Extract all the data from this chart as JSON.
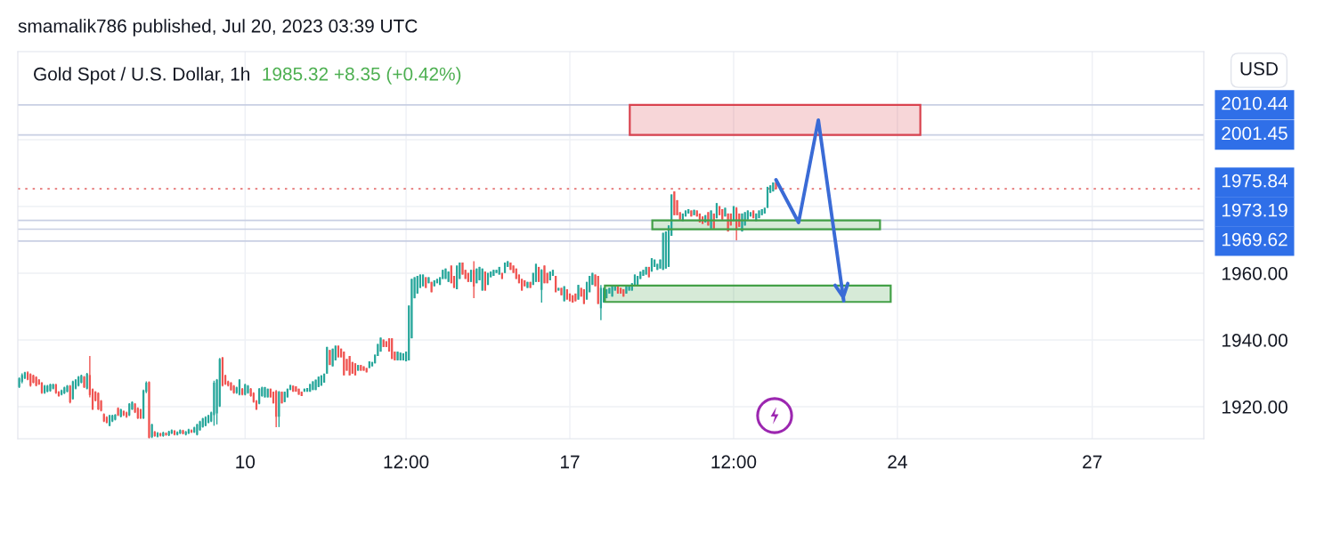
{
  "chart_data": {
    "type": "candlestick",
    "title": "Gold Spot / U.S. Dollar, 1h",
    "subtitle": "1985.32 +8.35 (+0.42%)",
    "ylabel": "USD",
    "annotations": [
      "smamalik786 published, Jul 20, 2023 03:39 UTC"
    ],
    "categories": [
      null,
      null,
      null,
      null,
      null,
      null,
      null,
      null,
      null,
      null,
      null,
      null,
      null,
      null,
      null,
      null,
      null,
      null,
      null,
      null,
      null,
      null,
      null,
      null,
      null,
      null,
      null,
      null,
      null,
      null,
      null,
      null,
      null,
      null,
      null,
      null,
      null,
      null,
      null,
      null,
      null,
      null,
      null,
      null,
      null,
      null,
      null,
      null,
      null,
      null,
      null,
      null,
      null,
      null,
      null,
      null,
      null,
      null,
      null,
      null,
      null,
      null,
      null,
      null,
      null,
      null,
      null,
      null,
      null,
      null,
      null,
      null,
      null,
      null,
      null,
      null,
      null,
      null,
      null,
      null,
      "10",
      null,
      null,
      null,
      null,
      null,
      null,
      null,
      null,
      null,
      null,
      null,
      null,
      null,
      null,
      null,
      null,
      null,
      null,
      null,
      null,
      null,
      null,
      null,
      null,
      null,
      null,
      null,
      null,
      null,
      null,
      null,
      null,
      null,
      null,
      null,
      null,
      null,
      null,
      null,
      null,
      null,
      null,
      null,
      null,
      null,
      null,
      null,
      null,
      null,
      null,
      null,
      null,
      null,
      null,
      null,
      null,
      "12:00",
      null,
      null,
      null,
      null,
      null,
      null,
      null,
      null,
      null,
      null,
      null,
      null,
      null,
      null,
      null,
      null,
      null,
      null,
      null,
      null,
      null,
      null,
      null,
      null,
      null,
      null,
      null,
      null,
      null,
      null,
      null,
      null,
      null,
      null,
      null,
      null,
      null,
      null,
      null,
      null,
      null,
      null,
      null,
      null,
      null,
      null,
      null,
      null,
      null,
      null,
      null,
      null,
      null,
      null,
      null,
      null,
      null,
      "17",
      null,
      null,
      null,
      null,
      null,
      null,
      null,
      null,
      null,
      null,
      null,
      null,
      null,
      null,
      null,
      null,
      null,
      null,
      null,
      null,
      null,
      null,
      null,
      null,
      null,
      null,
      null,
      null,
      null,
      null,
      null,
      null,
      null,
      null,
      null,
      null,
      null,
      null,
      null,
      null,
      null,
      null,
      null,
      null,
      null,
      null,
      null,
      null,
      null,
      null,
      null,
      null,
      null,
      null,
      null,
      null,
      null,
      "12:00",
      null,
      null,
      null,
      null,
      null,
      null,
      null,
      null,
      null,
      null,
      null,
      null,
      null,
      null,
      null,
      null,
      null,
      null,
      null,
      null,
      null,
      null,
      null,
      null,
      null,
      null,
      null,
      null,
      null,
      null,
      null,
      null,
      null,
      null,
      null,
      null,
      null,
      null,
      null,
      null,
      null,
      null,
      null,
      null,
      null,
      null,
      null,
      null,
      null,
      null,
      null,
      null,
      null,
      null,
      null,
      null,
      null,
      "24",
      null,
      null,
      null,
      null,
      null,
      null,
      null,
      null,
      null,
      null,
      null,
      null,
      null,
      null,
      null,
      null,
      null,
      null,
      null,
      null,
      null,
      null,
      null,
      null,
      null,
      null,
      null,
      null,
      null,
      null,
      null,
      null,
      null,
      null,
      null,
      null,
      null,
      null,
      null,
      null,
      null,
      null,
      null,
      null,
      null,
      null,
      null,
      null,
      null,
      null,
      null,
      null,
      null,
      null,
      null,
      null,
      null,
      null,
      null,
      null,
      null,
      null,
      null,
      null,
      null,
      null,
      null,
      null,
      "27",
      null,
      null,
      null,
      null,
      null,
      null,
      null,
      null,
      null,
      null,
      null,
      null,
      null,
      null,
      null,
      null,
      null,
      null,
      null,
      null,
      null,
      null,
      null,
      null,
      null,
      null,
      null,
      null,
      null,
      null,
      null,
      null,
      null,
      null,
      null,
      null,
      null,
      null,
      null
    ],
    "ohlc": [
      [
        1925.9,
        1928.8,
        1925.6,
        1928.5
      ],
      [
        1927.5,
        1930.0,
        1927.0,
        1929.5
      ],
      [
        1928.5,
        1930.5,
        1928.3,
        1930.3
      ],
      [
        1930.3,
        1930.6,
        1927.9,
        1928.1
      ],
      [
        1929.8,
        1930.0,
        1926.0,
        1926.3
      ],
      [
        1929.4,
        1929.6,
        1927.0,
        1927.2
      ],
      [
        1928.9,
        1929.1,
        1926.1,
        1926.3
      ],
      [
        1928.1,
        1928.3,
        1926.5,
        1926.7
      ],
      [
        1927.2,
        1927.4,
        1923.9,
        1924.1
      ],
      [
        1924.1,
        1926.5,
        1923.9,
        1926.3
      ],
      [
        1924.5,
        1926.5,
        1924.3,
        1926.3
      ],
      [
        1924.7,
        1926.9,
        1924.5,
        1926.7
      ],
      [
        1925.4,
        1926.9,
        1925.2,
        1926.7
      ],
      [
        1926.7,
        1926.9,
        1923.9,
        1924.1
      ],
      [
        1924.5,
        1924.7,
        1923.0,
        1923.2
      ],
      [
        1923.6,
        1925.1,
        1923.4,
        1924.9
      ],
      [
        1924.0,
        1926.0,
        1923.8,
        1925.8
      ],
      [
        1924.5,
        1926.5,
        1924.3,
        1926.3
      ],
      [
        1926.3,
        1926.5,
        1921.0,
        1921.3
      ],
      [
        1922.3,
        1927.8,
        1922.1,
        1927.6
      ],
      [
        1925.4,
        1928.3,
        1925.2,
        1928.1
      ],
      [
        1926.3,
        1929.2,
        1926.1,
        1929.0
      ],
      [
        1927.2,
        1929.6,
        1927.0,
        1929.4
      ],
      [
        1929.0,
        1929.2,
        1925.6,
        1925.8
      ],
      [
        1925.4,
        1930.1,
        1925.2,
        1929.9
      ],
      [
        1929.5,
        1935.2,
        1922.8,
        1923.5
      ],
      [
        1925.3,
        1925.5,
        1919.0,
        1919.2
      ],
      [
        1924.5,
        1924.7,
        1921.6,
        1921.8
      ],
      [
        1924.1,
        1924.3,
        1919.0,
        1919.2
      ],
      [
        1921.8,
        1922.0,
        1918.6,
        1918.8
      ],
      [
        1917.8,
        1918.0,
        1915.4,
        1915.6
      ],
      [
        1916.9,
        1917.1,
        1915.0,
        1915.2
      ],
      [
        1914.3,
        1917.6,
        1914.1,
        1917.4
      ],
      [
        1915.6,
        1917.6,
        1915.4,
        1917.4
      ],
      [
        1916.1,
        1917.8,
        1915.9,
        1917.6
      ],
      [
        1919.6,
        1919.8,
        1917.2,
        1917.4
      ],
      [
        1917.0,
        1919.4,
        1916.8,
        1919.2
      ],
      [
        1918.7,
        1918.9,
        1917.2,
        1917.4
      ],
      [
        1918.3,
        1918.5,
        1916.7,
        1916.9
      ],
      [
        1917.4,
        1921.1,
        1917.2,
        1920.9
      ],
      [
        1919.2,
        1921.6,
        1919.0,
        1921.4
      ],
      [
        1920.9,
        1921.1,
        1918.1,
        1918.3
      ],
      [
        1919.6,
        1919.8,
        1916.3,
        1916.5
      ],
      [
        1919.2,
        1919.4,
        1916.3,
        1916.5
      ],
      [
        1916.5,
        1925.1,
        1916.3,
        1924.9
      ],
      [
        1924.5,
        1927.6,
        1924.1,
        1927.2
      ],
      [
        1927.4,
        1927.6,
        1910.5,
        1910.7
      ],
      [
        1910.9,
        1914.9,
        1910.6,
        1914.7
      ],
      [
        1912.5,
        1912.7,
        1911.0,
        1911.2
      ],
      [
        1911.0,
        1912.4,
        1910.8,
        1912.2
      ],
      [
        1912.0,
        1912.2,
        1911.1,
        1911.3
      ],
      [
        1911.2,
        1912.5,
        1911.0,
        1912.3
      ],
      [
        1912.1,
        1912.3,
        1911.3,
        1911.5
      ],
      [
        1911.4,
        1912.8,
        1911.2,
        1912.6
      ],
      [
        1912.0,
        1913.2,
        1911.8,
        1913.0
      ],
      [
        1912.8,
        1913.0,
        1911.4,
        1911.6
      ],
      [
        1911.6,
        1912.6,
        1911.4,
        1912.4
      ],
      [
        1912.0,
        1913.2,
        1911.8,
        1913.0
      ],
      [
        1912.9,
        1913.1,
        1911.7,
        1911.9
      ],
      [
        1911.6,
        1912.7,
        1911.4,
        1912.5
      ],
      [
        1912.0,
        1913.4,
        1911.8,
        1913.2
      ],
      [
        1913.0,
        1913.2,
        1912.1,
        1912.3
      ],
      [
        1912.3,
        1914.0,
        1912.1,
        1913.8
      ],
      [
        1911.6,
        1914.9,
        1911.4,
        1914.7
      ],
      [
        1913.0,
        1915.8,
        1912.8,
        1915.6
      ],
      [
        1913.9,
        1916.7,
        1913.7,
        1916.5
      ],
      [
        1914.3,
        1917.1,
        1914.1,
        1916.9
      ],
      [
        1915.2,
        1917.6,
        1915.0,
        1917.4
      ],
      [
        1915.6,
        1918.5,
        1915.4,
        1918.3
      ],
      [
        1917.5,
        1927.8,
        1914.3,
        1927.2
      ],
      [
        1918.0,
        1928.3,
        1914.7,
        1928.1
      ],
      [
        1920.1,
        1934.6,
        1919.9,
        1934.3
      ],
      [
        1934.7,
        1934.9,
        1926.1,
        1926.3
      ],
      [
        1929.4,
        1929.6,
        1926.5,
        1926.7
      ],
      [
        1927.6,
        1927.8,
        1926.1,
        1926.3
      ],
      [
        1927.2,
        1927.4,
        1924.8,
        1925.0
      ],
      [
        1926.3,
        1926.5,
        1923.9,
        1924.1
      ],
      [
        1924.1,
        1926.0,
        1923.9,
        1925.8
      ],
      [
        1923.6,
        1928.3,
        1923.4,
        1928.1
      ],
      [
        1925.4,
        1925.6,
        1923.4,
        1923.6
      ],
      [
        1923.6,
        1926.9,
        1923.4,
        1926.7
      ],
      [
        1924.1,
        1926.5,
        1923.9,
        1926.3
      ],
      [
        1925.4,
        1925.6,
        1923.0,
        1923.2
      ],
      [
        1924.1,
        1924.3,
        1921.2,
        1921.4
      ],
      [
        1921.8,
        1922.0,
        1919.0,
        1919.2
      ],
      [
        1920.9,
        1925.6,
        1920.7,
        1925.4
      ],
      [
        1923.2,
        1926.0,
        1923.0,
        1925.8
      ],
      [
        1922.8,
        1925.9,
        1922.8,
        1925.9
      ],
      [
        1922.8,
        1925.4,
        1922.8,
        1925.4
      ],
      [
        1925.4,
        1925.4,
        1922.8,
        1922.8
      ],
      [
        1924.5,
        1924.5,
        1921.0,
        1921.0
      ],
      [
        1924.7,
        1925.0,
        1913.9,
        1917.0
      ],
      [
        1917.0,
        1924.7,
        1913.9,
        1924.5
      ],
      [
        1924.5,
        1924.5,
        1921.0,
        1921.0
      ],
      [
        1921.4,
        1924.5,
        1921.4,
        1924.5
      ],
      [
        1922.8,
        1925.4,
        1922.8,
        1925.4
      ],
      [
        1925.0,
        1926.5,
        1925.0,
        1926.5
      ],
      [
        1926.3,
        1926.3,
        1924.5,
        1924.5
      ],
      [
        1926.1,
        1926.1,
        1924.5,
        1924.5
      ],
      [
        1925.4,
        1925.4,
        1923.6,
        1923.6
      ],
      [
        1924.5,
        1924.5,
        1923.2,
        1923.2
      ],
      [
        1924.5,
        1925.4,
        1924.5,
        1925.4
      ],
      [
        1924.5,
        1925.6,
        1924.5,
        1925.6
      ],
      [
        1924.5,
        1926.8,
        1924.5,
        1926.8
      ],
      [
        1925.0,
        1927.6,
        1925.0,
        1927.6
      ],
      [
        1925.0,
        1928.1,
        1925.0,
        1928.1
      ],
      [
        1925.9,
        1929.0,
        1925.9,
        1929.0
      ],
      [
        1926.3,
        1929.4,
        1926.3,
        1929.4
      ],
      [
        1927.2,
        1929.9,
        1927.2,
        1929.9
      ],
      [
        1929.9,
        1937.9,
        1929.9,
        1937.9
      ],
      [
        1937.0,
        1937.0,
        1932.5,
        1932.5
      ],
      [
        1932.1,
        1937.4,
        1932.1,
        1937.4
      ],
      [
        1933.9,
        1938.3,
        1933.9,
        1938.3
      ],
      [
        1938.3,
        1938.3,
        1934.8,
        1934.8
      ],
      [
        1937.4,
        1937.4,
        1934.8,
        1934.8
      ],
      [
        1936.5,
        1936.5,
        1929.4,
        1929.4
      ],
      [
        1934.3,
        1934.3,
        1930.8,
        1930.8
      ],
      [
        1935.2,
        1935.2,
        1929.4,
        1929.4
      ],
      [
        1933.4,
        1933.4,
        1929.9,
        1929.9
      ],
      [
        1933.0,
        1933.0,
        1929.4,
        1929.4
      ],
      [
        1930.8,
        1932.5,
        1930.8,
        1932.5
      ],
      [
        1932.5,
        1932.5,
        1930.8,
        1930.8
      ],
      [
        1932.1,
        1932.1,
        1930.8,
        1930.8
      ],
      [
        1931.6,
        1931.6,
        1930.3,
        1930.3
      ],
      [
        1931.6,
        1933.6,
        1931.6,
        1933.6
      ],
      [
        1932.1,
        1933.4,
        1932.1,
        1933.4
      ],
      [
        1933.0,
        1935.6,
        1933.0,
        1935.6
      ],
      [
        1935.2,
        1938.8,
        1935.2,
        1938.8
      ],
      [
        1936.5,
        1940.7,
        1936.5,
        1940.7
      ],
      [
        1940.1,
        1940.1,
        1937.9,
        1937.9
      ],
      [
        1939.6,
        1939.6,
        1937.9,
        1937.9
      ],
      [
        1940.5,
        1940.5,
        1936.5,
        1936.5
      ],
      [
        1940.5,
        1940.5,
        1934.3,
        1934.3
      ],
      [
        1936.5,
        1936.5,
        1933.9,
        1933.9
      ],
      [
        1933.9,
        1936.5,
        1933.9,
        1936.5
      ],
      [
        1933.9,
        1936.2,
        1933.9,
        1936.2
      ],
      [
        1933.9,
        1936.0,
        1933.9,
        1936.0
      ],
      [
        1933.6,
        1936.5,
        1933.6,
        1936.5
      ],
      [
        1933.9,
        1950.3,
        1933.9,
        1950.3
      ],
      [
        1940.5,
        1958.3,
        1940.5,
        1958.3
      ],
      [
        1952.5,
        1958.8,
        1952.5,
        1958.8
      ],
      [
        1953.9,
        1959.2,
        1953.9,
        1959.2
      ],
      [
        1955.6,
        1959.6,
        1955.6,
        1959.6
      ],
      [
        1956.1,
        1959.6,
        1956.1,
        1959.6
      ],
      [
        1958.8,
        1958.8,
        1955.6,
        1955.6
      ],
      [
        1957.0,
        1958.8,
        1957.0,
        1958.8
      ],
      [
        1957.4,
        1957.4,
        1954.3,
        1954.3
      ],
      [
        1956.1,
        1957.9,
        1956.1,
        1957.9
      ],
      [
        1957.0,
        1958.3,
        1957.0,
        1958.3
      ],
      [
        1956.5,
        1958.8,
        1956.5,
        1958.8
      ],
      [
        1958.3,
        1961.0,
        1958.3,
        1961.0
      ],
      [
        1958.3,
        1961.4,
        1958.3,
        1961.4
      ],
      [
        1957.4,
        1960.5,
        1957.4,
        1960.5
      ],
      [
        1962.3,
        1962.3,
        1957.0,
        1957.0
      ],
      [
        1959.2,
        1959.2,
        1955.6,
        1955.6
      ],
      [
        1955.2,
        1962.3,
        1955.2,
        1962.3
      ],
      [
        1958.3,
        1963.2,
        1958.3,
        1963.2
      ],
      [
        1963.2,
        1963.2,
        1959.6,
        1959.6
      ],
      [
        1961.0,
        1961.0,
        1958.3,
        1958.3
      ],
      [
        1960.1,
        1960.1,
        1957.4,
        1957.4
      ],
      [
        1957.4,
        1961.0,
        1957.4,
        1961.0
      ],
      [
        1961.0,
        1963.6,
        1952.5,
        1956.0
      ],
      [
        1957.0,
        1961.4,
        1957.0,
        1961.4
      ],
      [
        1957.9,
        1961.9,
        1957.9,
        1961.9
      ],
      [
        1954.8,
        1961.4,
        1954.8,
        1961.4
      ],
      [
        1960.5,
        1960.5,
        1954.8,
        1954.8
      ],
      [
        1956.5,
        1960.1,
        1956.5,
        1960.1
      ],
      [
        1958.8,
        1960.5,
        1958.8,
        1960.5
      ],
      [
        1959.2,
        1961.0,
        1959.2,
        1961.0
      ],
      [
        1960.1,
        1961.0,
        1960.1,
        1961.0
      ],
      [
        1959.6,
        1961.9,
        1959.6,
        1961.9
      ],
      [
        1960.1,
        1960.1,
        1958.3,
        1958.3
      ],
      [
        1960.1,
        1963.2,
        1960.1,
        1963.2
      ],
      [
        1961.9,
        1963.6,
        1961.9,
        1963.6
      ],
      [
        1963.2,
        1963.2,
        1961.0,
        1961.0
      ],
      [
        1962.3,
        1962.3,
        1960.1,
        1960.1
      ],
      [
        1961.4,
        1961.4,
        1958.3,
        1958.3
      ],
      [
        1959.6,
        1959.6,
        1957.0,
        1957.0
      ],
      [
        1958.3,
        1958.3,
        1954.8,
        1954.8
      ],
      [
        1957.9,
        1957.9,
        1956.1,
        1956.1
      ],
      [
        1955.6,
        1957.4,
        1955.6,
        1957.4
      ],
      [
        1957.4,
        1957.4,
        1955.6,
        1955.6
      ],
      [
        1956.5,
        1960.1,
        1956.5,
        1960.1
      ],
      [
        1957.4,
        1962.8,
        1957.4,
        1962.8
      ],
      [
        1961.9,
        1961.9,
        1957.4,
        1957.4
      ],
      [
        1955.0,
        1961.2,
        1951.2,
        1961.0
      ],
      [
        1962.3,
        1962.3,
        1957.0,
        1957.0
      ],
      [
        1960.1,
        1960.1,
        1957.0,
        1957.0
      ],
      [
        1957.9,
        1960.5,
        1957.9,
        1960.5
      ],
      [
        1959.2,
        1961.0,
        1959.2,
        1961.0
      ],
      [
        1959.2,
        1959.2,
        1954.3,
        1954.3
      ],
      [
        1954.8,
        1955.6,
        1954.8,
        1955.6
      ],
      [
        1955.6,
        1955.6,
        1953.4,
        1953.4
      ],
      [
        1951.6,
        1956.1,
        1951.6,
        1956.1
      ],
      [
        1955.2,
        1955.2,
        1952.1,
        1952.1
      ],
      [
        1953.9,
        1953.9,
        1951.6,
        1951.6
      ],
      [
        1953.4,
        1953.4,
        1951.2,
        1951.2
      ],
      [
        1953.9,
        1953.9,
        1951.6,
        1951.6
      ],
      [
        1952.1,
        1956.5,
        1952.1,
        1956.5
      ],
      [
        1955.6,
        1955.6,
        1953.0,
        1953.0
      ],
      [
        1955.2,
        1955.2,
        1950.8,
        1950.8
      ],
      [
        1952.1,
        1957.4,
        1952.1,
        1957.4
      ],
      [
        1954.3,
        1959.2,
        1954.3,
        1959.2
      ],
      [
        1956.5,
        1960.1,
        1956.5,
        1960.1
      ],
      [
        1959.6,
        1959.6,
        1956.1,
        1956.1
      ],
      [
        1959.2,
        1959.2,
        1950.8,
        1950.8
      ],
      [
        1949.5,
        1956.5,
        1945.9,
        1955.6
      ],
      [
        1951.2,
        1955.6,
        1951.2,
        1955.6
      ],
      [
        1952.5,
        1955.2,
        1952.5,
        1955.2
      ],
      [
        1953.9,
        1955.6,
        1953.9,
        1955.6
      ],
      [
        1953.0,
        1956.1,
        1953.0,
        1956.1
      ],
      [
        1954.8,
        1956.1,
        1954.8,
        1956.1
      ],
      [
        1956.1,
        1956.1,
        1953.9,
        1953.9
      ],
      [
        1955.6,
        1955.6,
        1953.9,
        1953.9
      ],
      [
        1955.2,
        1955.2,
        1953.0,
        1953.0
      ],
      [
        1953.9,
        1956.1,
        1953.9,
        1956.1
      ],
      [
        1954.8,
        1956.5,
        1954.8,
        1956.5
      ],
      [
        1954.8,
        1957.0,
        1954.8,
        1957.0
      ],
      [
        1956.1,
        1959.6,
        1956.1,
        1959.6
      ],
      [
        1956.5,
        1959.2,
        1956.5,
        1959.2
      ],
      [
        1958.3,
        1960.5,
        1958.3,
        1960.5
      ],
      [
        1959.2,
        1961.0,
        1959.2,
        1961.0
      ],
      [
        1959.6,
        1961.9,
        1959.6,
        1961.9
      ],
      [
        1961.9,
        1961.9,
        1958.8,
        1958.8
      ],
      [
        1960.5,
        1964.5,
        1960.5,
        1964.5
      ],
      [
        1961.9,
        1964.1,
        1961.9,
        1964.1
      ],
      [
        1961.0,
        1962.8,
        1961.0,
        1962.8
      ],
      [
        1961.4,
        1964.1,
        1961.4,
        1964.1
      ],
      [
        1961.0,
        1972.1,
        1961.0,
        1972.1
      ],
      [
        1961.4,
        1972.5,
        1961.4,
        1972.5
      ],
      [
        1961.9,
        1974.3,
        1961.9,
        1974.3
      ],
      [
        1971.2,
        1983.6,
        1971.2,
        1983.6
      ],
      [
        1984.5,
        1984.5,
        1977.4,
        1977.4
      ],
      [
        1981.9,
        1981.9,
        1977.4,
        1977.4
      ],
      [
        1978.3,
        1978.3,
        1976.1,
        1976.1
      ],
      [
        1975.6,
        1977.9,
        1975.6,
        1977.9
      ],
      [
        1977.0,
        1978.8,
        1977.0,
        1978.8
      ],
      [
        1977.9,
        1979.2,
        1977.9,
        1979.2
      ],
      [
        1978.8,
        1978.8,
        1977.0,
        1977.0
      ],
      [
        1977.4,
        1979.0,
        1977.4,
        1979.0
      ],
      [
        1978.8,
        1978.8,
        1977.0,
        1977.0
      ],
      [
        1977.9,
        1977.9,
        1975.2,
        1975.2
      ],
      [
        1977.0,
        1977.0,
        1974.8,
        1974.8
      ],
      [
        1975.2,
        1977.4,
        1975.2,
        1977.4
      ],
      [
        1978.3,
        1978.3,
        1974.3,
        1974.3
      ],
      [
        1973.4,
        1978.8,
        1973.4,
        1978.8
      ],
      [
        1977.9,
        1977.9,
        1973.4,
        1973.4
      ],
      [
        1976.5,
        1981.0,
        1976.5,
        1981.0
      ],
      [
        1980.1,
        1980.1,
        1977.4,
        1977.4
      ],
      [
        1979.2,
        1979.2,
        1976.1,
        1976.1
      ],
      [
        1977.0,
        1979.6,
        1977.0,
        1979.6
      ],
      [
        1977.9,
        1977.9,
        1972.5,
        1972.5
      ],
      [
        1977.9,
        1977.9,
        1974.3,
        1974.3
      ],
      [
        1975.6,
        1980.1,
        1975.6,
        1980.1
      ],
      [
        1979.6,
        1979.8,
        1969.9,
        1973.0
      ],
      [
        1977.9,
        1977.9,
        1973.9,
        1973.9
      ],
      [
        1972.5,
        1977.9,
        1972.5,
        1977.9
      ],
      [
        1974.3,
        1978.3,
        1974.3,
        1978.3
      ],
      [
        1976.1,
        1978.8,
        1976.1,
        1978.8
      ],
      [
        1977.0,
        1978.3,
        1977.0,
        1978.3
      ],
      [
        1978.8,
        1978.8,
        1976.5,
        1976.5
      ],
      [
        1975.6,
        1977.9,
        1975.6,
        1977.9
      ],
      [
        1976.5,
        1978.8,
        1976.5,
        1978.8
      ],
      [
        1977.4,
        1979.2,
        1977.4,
        1979.2
      ],
      [
        1977.9,
        1979.6,
        1977.9,
        1979.6
      ],
      [
        1979.6,
        1985.9,
        1979.6,
        1985.9
      ],
      [
        1984.1,
        1986.3,
        1984.1,
        1986.3
      ],
      [
        1984.5,
        1987.2,
        1984.5,
        1987.2
      ],
      [
        1987.2,
        1987.6,
        1985.32,
        1985.32
      ],
      null,
      null,
      null,
      null,
      null,
      null,
      null,
      null,
      null,
      null,
      null,
      null,
      null,
      null,
      null,
      null,
      null,
      null,
      null,
      null,
      null,
      null,
      null,
      null,
      null,
      null,
      null,
      null,
      null,
      null,
      null,
      null,
      null,
      null,
      null,
      null,
      null,
      null,
      null,
      null,
      null,
      null,
      null,
      null,
      null,
      null,
      null,
      null,
      null,
      null,
      null,
      null,
      null,
      null,
      null,
      null,
      null,
      null,
      null,
      null,
      null,
      null,
      null,
      null,
      null,
      null,
      null,
      null,
      null,
      null,
      null,
      null,
      null,
      null,
      null,
      null,
      null,
      null,
      null,
      null,
      null,
      null,
      null,
      null,
      null,
      null,
      null,
      null,
      null,
      null,
      null,
      null,
      null,
      null,
      null,
      null,
      null,
      null,
      null,
      null,
      null,
      null,
      null,
      null,
      null,
      null,
      null,
      null,
      null,
      null,
      null,
      null,
      null,
      null,
      null,
      null,
      null,
      null,
      null,
      null,
      null,
      null,
      null,
      null,
      null,
      null,
      null,
      null,
      null,
      null,
      null,
      null,
      null,
      null,
      null,
      null,
      null,
      null,
      null,
      null,
      null,
      null,
      null,
      null,
      null,
      null,
      null,
      null,
      null,
      null,
      null
    ],
    "series": [
      {
        "type": "line",
        "color": "#3a6bd6",
        "values": [
          null,
          null,
          null,
          null,
          null,
          null,
          null,
          null,
          null,
          null,
          null,
          null,
          null,
          null,
          null,
          null,
          null,
          null,
          null,
          null,
          null,
          null,
          null,
          null,
          null,
          null,
          null,
          null,
          null,
          null,
          null,
          null,
          null,
          null,
          null,
          null,
          null,
          null,
          null,
          null,
          null,
          null,
          null,
          null,
          null,
          null,
          null,
          null,
          null,
          null,
          null,
          null,
          null,
          null,
          null,
          null,
          null,
          null,
          null,
          null,
          null,
          null,
          null,
          null,
          null,
          null,
          null,
          null,
          null,
          null,
          null,
          null,
          null,
          null,
          null,
          null,
          null,
          null,
          null,
          null,
          null,
          null,
          null,
          null,
          null,
          null,
          null,
          null,
          null,
          null,
          null,
          null,
          null,
          null,
          null,
          null,
          null,
          null,
          null,
          null,
          null,
          null,
          null,
          null,
          null,
          null,
          null,
          null,
          null,
          null,
          null,
          null,
          null,
          null,
          null,
          null,
          null,
          null,
          null,
          null,
          null,
          null,
          null,
          null,
          null,
          null,
          null,
          null,
          null,
          null,
          null,
          null,
          null,
          null,
          null,
          null,
          null,
          null,
          null,
          null,
          null,
          null,
          null,
          null,
          null,
          null,
          null,
          null,
          null,
          null,
          null,
          null,
          null,
          null,
          null,
          null,
          null,
          null,
          null,
          null,
          null,
          null,
          null,
          null,
          null,
          null,
          null,
          null,
          null,
          null,
          null,
          null,
          null,
          null,
          null,
          null,
          null,
          null,
          null,
          null,
          null,
          null,
          null,
          null,
          null,
          null,
          null,
          null,
          null,
          null,
          null,
          null,
          null,
          null,
          null,
          null,
          null,
          null,
          null,
          null,
          null,
          null,
          null,
          null,
          null,
          null,
          null,
          null,
          null,
          null,
          null,
          null,
          null,
          null,
          null,
          null,
          null,
          null,
          null,
          null,
          null,
          null,
          null,
          null,
          null,
          null,
          null,
          null,
          null,
          null,
          null,
          null,
          null,
          null,
          null,
          null,
          null,
          null,
          null,
          null,
          null,
          null,
          null,
          null,
          null,
          null,
          null,
          null,
          null,
          null,
          null,
          null,
          null,
          null,
          null,
          null,
          null,
          null,
          null,
          null,
          null,
          null,
          null,
          null,
          null,
          null,
          null,
          null,
          1988.0,
          null,
          null,
          null,
          null,
          null,
          null,
          null,
          1975.2,
          null,
          null,
          null,
          null,
          null,
          null,
          2005.9,
          null,
          null,
          null,
          null,
          null,
          null,
          null,
          null,
          1951.7,
          null,
          null,
          null,
          null,
          null,
          null,
          null,
          null,
          null,
          null,
          null,
          null,
          null,
          null,
          null,
          null,
          null,
          null,
          null,
          null,
          null,
          null,
          null,
          null,
          null,
          null,
          null,
          null,
          null,
          null,
          null,
          null,
          null,
          null,
          null,
          null,
          null,
          null,
          null,
          null,
          null,
          null,
          null,
          null,
          null,
          null,
          null,
          null,
          null,
          null,
          null,
          null,
          null,
          null,
          null,
          null,
          null,
          null,
          null,
          null,
          null,
          null,
          null,
          null,
          null,
          null,
          null,
          null,
          null,
          null,
          null,
          null,
          null,
          null,
          null,
          null,
          null,
          null,
          null,
          null,
          null,
          null,
          null,
          null,
          null,
          null,
          null,
          null,
          null,
          null,
          null,
          null,
          null,
          null,
          null,
          null,
          null,
          null,
          null,
          null,
          null,
          null,
          null,
          null,
          null,
          null,
          null,
          null,
          null,
          null,
          null,
          null,
          null,
          null,
          null,
          null,
          null,
          null,
          null,
          null,
          null,
          null,
          null,
          null,
          null,
          null,
          null
        ]
      }
    ],
    "ylim": [
      1910.4,
      2026.4
    ],
    "yticks": [
      {
        "value": 1920,
        "label": "1920.00"
      },
      {
        "value": 1940,
        "label": "1940.00"
      },
      {
        "value": 1960,
        "label": "1960.00"
      },
      {
        "value": 1980,
        "label": null
      },
      {
        "value": 2000,
        "label": null
      }
    ],
    "grid": true,
    "ref_lines": [
      {
        "axis": "y",
        "value": 2010.44,
        "label": "2010.44",
        "color": "#c8cfe3"
      },
      {
        "axis": "y",
        "value": 2001.45,
        "label": "2001.45",
        "color": "#c8cfe3"
      },
      {
        "axis": "y",
        "value": 1985.32,
        "color": "#e57373",
        "line_style": "dotted"
      },
      {
        "axis": "y",
        "value": 1975.84,
        "label": "1975.84",
        "color": "#c8cfe3"
      },
      {
        "axis": "y",
        "value": 1973.19,
        "label": "1973.19",
        "color": "#c8cfe3"
      },
      {
        "axis": "y",
        "value": 1969.62,
        "label": "1969.62",
        "color": "#c8cfe3"
      }
    ],
    "bands": [
      {
        "axis": "y",
        "from": 2001.45,
        "to": 2010.44,
        "color": "#d9434f"
      },
      {
        "axis": "y",
        "from": 1973.19,
        "to": 1975.84,
        "color": "#43a047"
      },
      {
        "axis": "y",
        "from": 1951.4,
        "to": 1956.3,
        "color": "#43a047"
      }
    ]
  }
}
